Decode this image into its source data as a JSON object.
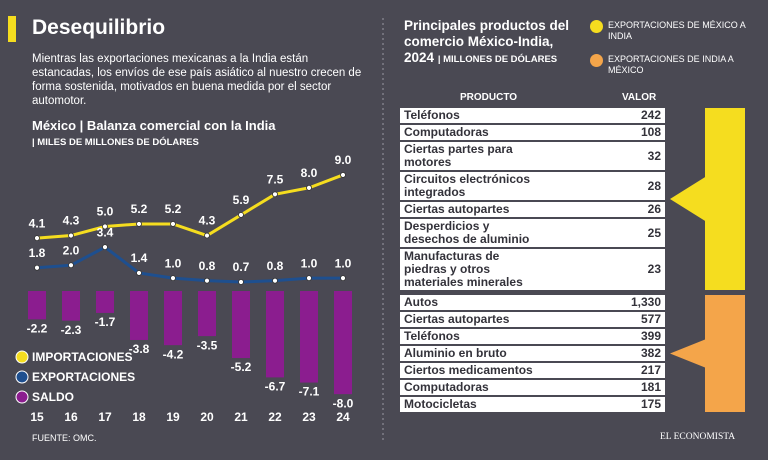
{
  "header": {
    "title": "Desequilibrio",
    "text": "Mientras las exportaciones mexicanas a la India están estancadas, los envíos de ese país asiático al nuestro crecen de forma sostenida, motivados en buena medida por el sector automotor."
  },
  "chart_data": {
    "type": "line",
    "title": "México | Balanza comercial con la India",
    "subtitle": "| MILES DE MILLONES DE DÓLARES",
    "categories": [
      "15",
      "16",
      "17",
      "18",
      "19",
      "20",
      "21",
      "22",
      "23",
      "24"
    ],
    "ylim": [
      -8.5,
      9.5
    ],
    "series": [
      {
        "name": "IMPORTACIONES",
        "color": "#f5dd1f",
        "values": [
          4.1,
          4.3,
          5.0,
          5.2,
          5.2,
          4.3,
          5.9,
          7.5,
          8.0,
          9.0
        ],
        "value_labels": [
          "4.1",
          "4.3",
          "5.0",
          "5.2",
          "5.2",
          "4.3",
          "5.9",
          "7.5",
          "8.0",
          "9.0"
        ]
      },
      {
        "name": "EXPORTACIONES",
        "color": "#1e4f8f",
        "values": [
          1.8,
          2.0,
          3.4,
          1.4,
          1.0,
          0.8,
          0.7,
          0.8,
          1.0,
          1.0
        ],
        "value_labels": [
          "1.8",
          "2.0",
          "3.4",
          "1.4",
          "1.0",
          "0.8",
          "0.7",
          "0.8",
          "1.0",
          "1.0"
        ]
      },
      {
        "name": "SALDO",
        "type": "bar",
        "color": "#8b1d8f",
        "values": [
          -2.2,
          -2.3,
          -1.7,
          -3.8,
          -4.2,
          -3.5,
          -5.2,
          -6.7,
          -7.1,
          -8.0
        ],
        "value_labels": [
          "-2.2",
          "-2.3",
          "-1.7",
          "-3.8",
          "-4.2",
          "-3.5",
          "-5.2",
          "-6.7",
          "-7.1",
          "-8.0"
        ]
      }
    ]
  },
  "source": "FUENTE: OMC.",
  "products": {
    "title": "Principales productos del comercio México-India, 2024",
    "unit": "| MILLONES DE DÓLARES",
    "columns": [
      "PRODUCTO",
      "VALOR"
    ],
    "groups": [
      {
        "name": "EXPORTACIONES DE MÉXICO A INDIA",
        "color": "#f5dd1f",
        "rows": [
          [
            "Teléfonos",
            "242"
          ],
          [
            "Computadoras",
            "108"
          ],
          [
            "Ciertas partes para motores",
            "32"
          ],
          [
            "Circuitos electrónicos integrados",
            "28"
          ],
          [
            "Ciertas autopartes",
            "26"
          ],
          [
            "Desperdicios y desechos de aluminio",
            "25"
          ],
          [
            "Manufacturas de piedras y otros materiales minerales",
            "23"
          ]
        ]
      },
      {
        "name": "EXPORTACIONES DE INDIA A MÉXICO",
        "color": "#f4a54a",
        "rows": [
          [
            "Autos",
            "1,330"
          ],
          [
            "Ciertas autopartes",
            "577"
          ],
          [
            "Teléfonos",
            "399"
          ],
          [
            "Aluminio en bruto",
            "382"
          ],
          [
            "Ciertos medicamentos",
            "217"
          ],
          [
            "Computadoras",
            "181"
          ],
          [
            "Motocicletas",
            "175"
          ]
        ]
      }
    ]
  },
  "credit": "EL ECONOMISTA"
}
